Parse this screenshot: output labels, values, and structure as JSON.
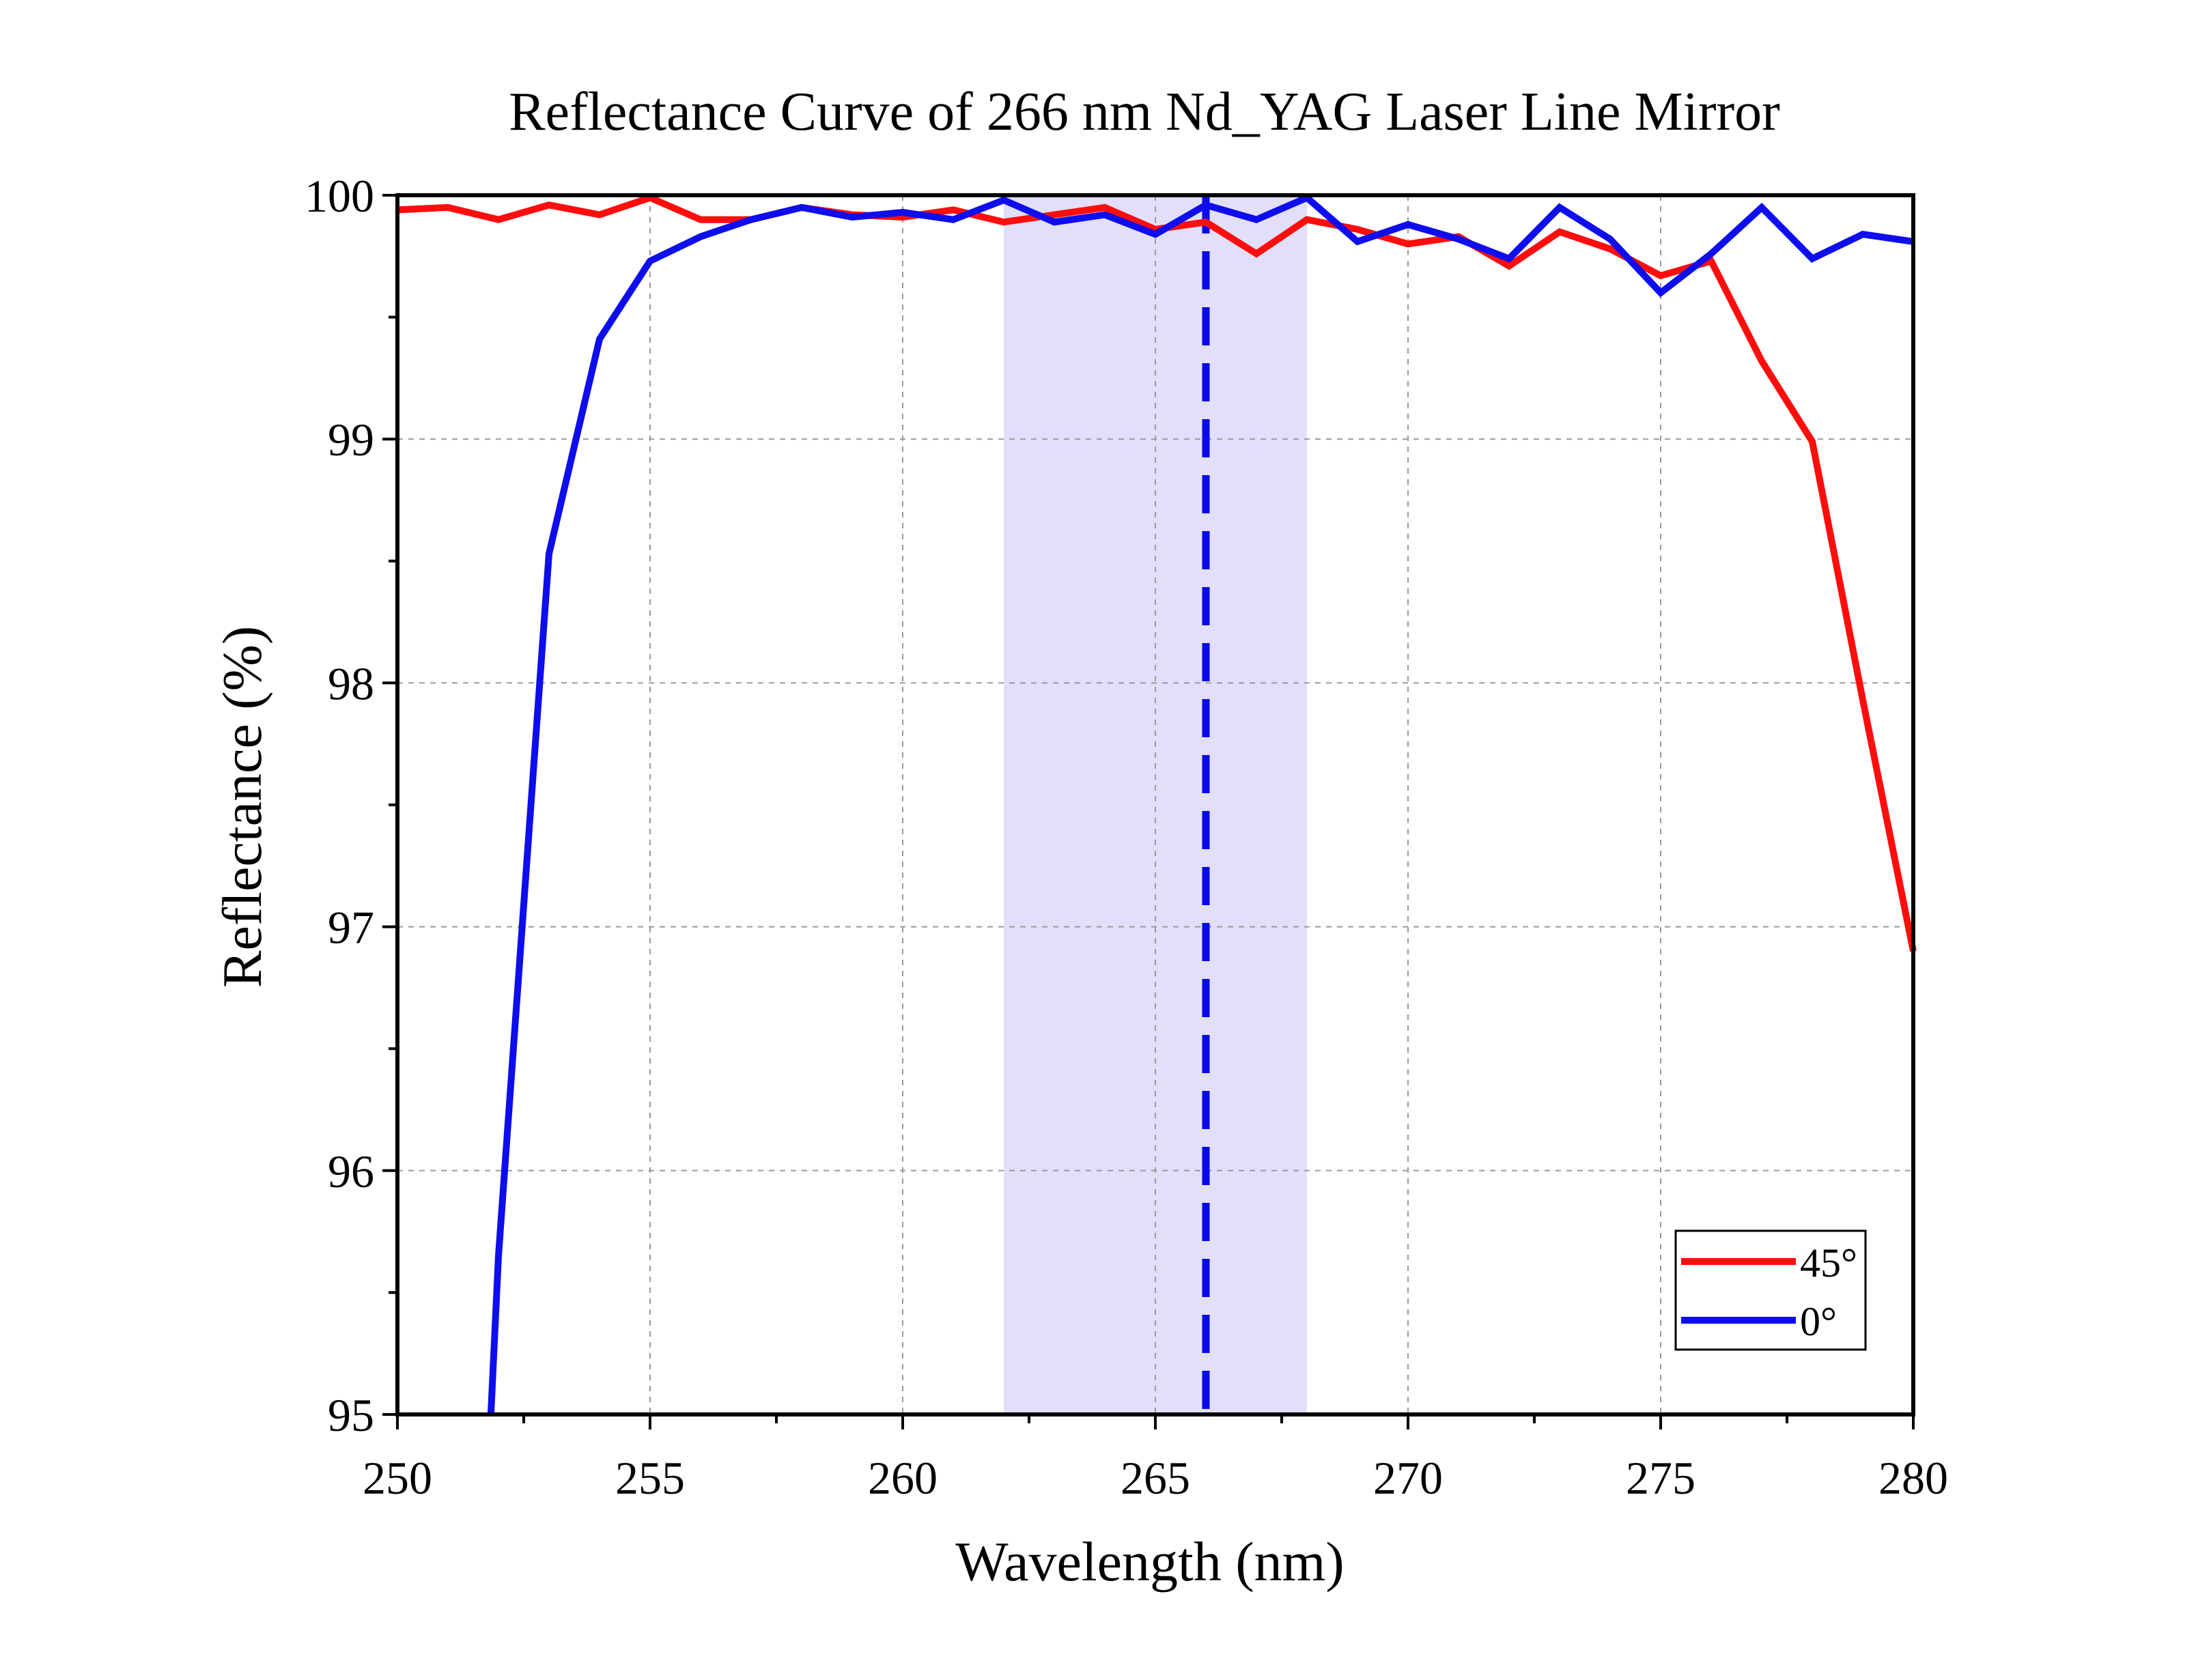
{
  "chart_data": {
    "type": "line",
    "title": "Reflectance Curve of 266 nm Nd_YAG Laser Line Mirror",
    "xlabel": "Wavelength (nm)",
    "ylabel": "Reflectance (%)",
    "xlim": [
      250,
      280
    ],
    "ylim": [
      95,
      100
    ],
    "x_ticks": [
      250,
      255,
      260,
      265,
      270,
      275,
      280
    ],
    "y_ticks": [
      95,
      96,
      97,
      98,
      99,
      100
    ],
    "x_tick_labels": [
      "250",
      "255",
      "260",
      "265",
      "270",
      "275",
      "280"
    ],
    "y_tick_labels": [
      "95",
      "96",
      "97",
      "98",
      "99",
      "100"
    ],
    "grid": true,
    "legend_position": "bottom-right",
    "highlight_band": {
      "x": [
        262,
        268
      ],
      "color": "#e1dffa"
    },
    "reference_line": {
      "x": 266,
      "style": "dashed",
      "color": "#0a0ae6"
    },
    "series": [
      {
        "name": "45°",
        "color": "#ff0d0d",
        "x": [
          250,
          251,
          252,
          253,
          254,
          255,
          256,
          257,
          258,
          259,
          260,
          261,
          262,
          263,
          264,
          265,
          266,
          267,
          268,
          269,
          270,
          271,
          272,
          273,
          274,
          275,
          276,
          277,
          278,
          279,
          280
        ],
        "values": [
          99.94,
          99.95,
          99.9,
          99.96,
          99.92,
          99.99,
          99.9,
          99.9,
          99.95,
          99.92,
          99.91,
          99.94,
          99.89,
          99.92,
          99.95,
          99.86,
          99.89,
          99.76,
          99.9,
          99.86,
          99.8,
          99.83,
          99.71,
          99.85,
          99.78,
          99.67,
          99.73,
          99.32,
          98.99,
          97.93,
          96.9
        ]
      },
      {
        "name": "0°",
        "color": "#0d0ded",
        "x": [
          251.85,
          252,
          253,
          254,
          255,
          256,
          257,
          258,
          259,
          260,
          261,
          262,
          263,
          264,
          265,
          266,
          267,
          268,
          269,
          270,
          271,
          272,
          273,
          274,
          275,
          276,
          277,
          278,
          279,
          280
        ],
        "values": [
          95.0,
          95.65,
          98.53,
          99.41,
          99.73,
          99.83,
          99.9,
          99.95,
          99.91,
          99.93,
          99.9,
          99.98,
          99.89,
          99.92,
          99.84,
          99.96,
          99.9,
          99.99,
          99.81,
          99.88,
          99.82,
          99.74,
          99.95,
          99.82,
          99.6,
          99.76,
          99.95,
          99.74,
          99.84,
          99.81
        ]
      }
    ]
  }
}
